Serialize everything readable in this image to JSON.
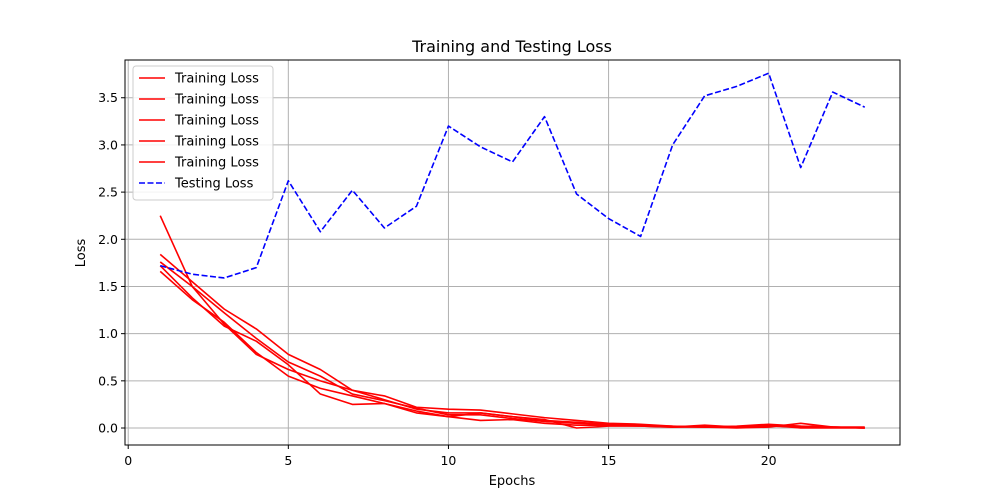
{
  "chart_data": {
    "type": "line",
    "title": "Training and Testing Loss",
    "xlabel": "Epochs",
    "ylabel": "Loss",
    "xlim": [
      -0.1,
      24.1
    ],
    "ylim": [
      -0.18,
      3.9
    ],
    "xticks": [
      0,
      5,
      10,
      15,
      20
    ],
    "yticks": [
      0.0,
      0.5,
      1.0,
      1.5,
      2.0,
      2.5,
      3.0,
      3.5
    ],
    "xtick_labels": [
      "0",
      "5",
      "10",
      "15",
      "20"
    ],
    "ytick_labels": [
      "0.0",
      "0.5",
      "1.0",
      "1.5",
      "2.0",
      "2.5",
      "3.0",
      "3.5"
    ],
    "grid": true,
    "legend_position": "top-left",
    "x": [
      1,
      2,
      3,
      4,
      5,
      6,
      7,
      8,
      9,
      10,
      11,
      12,
      13,
      14,
      15,
      16,
      17,
      18,
      19,
      20,
      21,
      22,
      23
    ],
    "series": [
      {
        "name": "Training Loss",
        "color": "#ff0000",
        "style": "solid",
        "values": [
          2.25,
          1.5,
          1.1,
          0.78,
          0.62,
          0.5,
          0.4,
          0.34,
          0.22,
          0.2,
          0.19,
          0.15,
          0.11,
          0.08,
          0.05,
          0.04,
          0.02,
          0.01,
          0.01,
          0.02,
          0.01,
          0.01,
          0.01
        ]
      },
      {
        "name": "Training Loss",
        "color": "#ff0000",
        "style": "solid",
        "values": [
          1.84,
          1.55,
          1.26,
          1.05,
          0.78,
          0.62,
          0.4,
          0.3,
          0.2,
          0.16,
          0.16,
          0.12,
          0.08,
          0.06,
          0.04,
          0.03,
          0.02,
          0.01,
          0.02,
          0.04,
          0.02,
          0.01,
          0.0
        ]
      },
      {
        "name": "Training Loss",
        "color": "#ff0000",
        "style": "solid",
        "values": [
          1.76,
          1.5,
          1.22,
          0.95,
          0.7,
          0.55,
          0.36,
          0.29,
          0.21,
          0.14,
          0.14,
          0.1,
          0.07,
          0.05,
          0.04,
          0.03,
          0.01,
          0.02,
          0.01,
          0.02,
          0.02,
          0.01,
          0.0
        ]
      },
      {
        "name": "Training Loss",
        "color": "#ff0000",
        "style": "solid",
        "values": [
          1.66,
          1.36,
          1.12,
          0.8,
          0.55,
          0.42,
          0.34,
          0.26,
          0.18,
          0.12,
          0.08,
          0.09,
          0.05,
          0.03,
          0.03,
          0.02,
          0.01,
          0.01,
          0.0,
          0.01,
          0.05,
          0.01,
          0.0
        ]
      },
      {
        "name": "Training Loss",
        "color": "#ff0000",
        "style": "solid",
        "values": [
          1.72,
          1.38,
          1.08,
          0.92,
          0.67,
          0.36,
          0.25,
          0.26,
          0.16,
          0.12,
          0.16,
          0.12,
          0.09,
          0.0,
          0.02,
          0.02,
          0.01,
          0.03,
          0.01,
          0.03,
          0.0,
          0.0,
          0.0
        ]
      },
      {
        "name": "Testing Loss",
        "color": "#0000ff",
        "style": "dashed",
        "values": [
          1.72,
          1.63,
          1.59,
          1.7,
          2.62,
          2.08,
          2.52,
          2.12,
          2.35,
          3.2,
          2.98,
          2.82,
          3.3,
          2.48,
          2.22,
          2.03,
          3.0,
          3.52,
          3.62,
          3.76,
          2.76,
          3.56,
          3.4
        ]
      }
    ]
  }
}
